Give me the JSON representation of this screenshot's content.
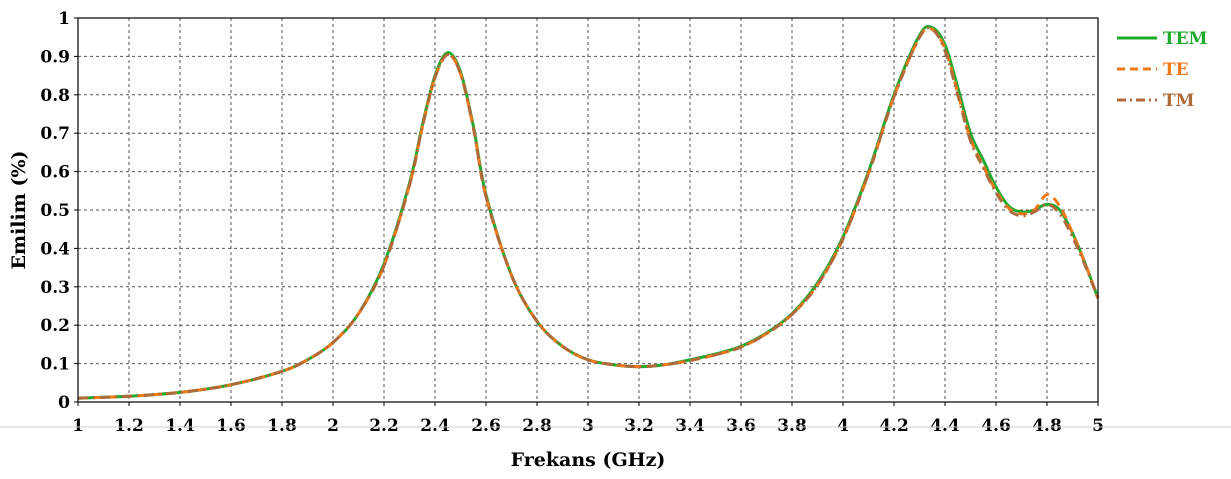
{
  "chart_data": {
    "type": "line",
    "title": "",
    "xlabel": "Frekans (GHz)",
    "ylabel": "Emilim (%)",
    "xlim": [
      1,
      5
    ],
    "ylim": [
      0,
      1
    ],
    "x_ticks": [
      "1",
      "1.2",
      "1.4",
      "1.6",
      "1.8",
      "2",
      "2.2",
      "2.4",
      "2.6",
      "2.8",
      "3",
      "3.2",
      "3.4",
      "3.6",
      "3.8",
      "4",
      "4.2",
      "4.4",
      "4.6",
      "4.8",
      "5"
    ],
    "y_ticks": [
      "0",
      "0.1",
      "0.2",
      "0.3",
      "0.4",
      "0.5",
      "0.6",
      "0.7",
      "0.8",
      "0.9",
      "1"
    ],
    "grid": true,
    "legend_position": "right-top, outside plot",
    "series": [
      {
        "name": "TEM",
        "color": "#1faa2e",
        "style": "solid",
        "x": [
          1.0,
          1.2,
          1.4,
          1.6,
          1.8,
          1.9,
          2.0,
          2.1,
          2.2,
          2.3,
          2.35,
          2.4,
          2.45,
          2.5,
          2.55,
          2.6,
          2.7,
          2.8,
          2.9,
          3.0,
          3.1,
          3.2,
          3.3,
          3.4,
          3.5,
          3.6,
          3.7,
          3.8,
          3.9,
          4.0,
          4.1,
          4.2,
          4.3,
          4.35,
          4.4,
          4.45,
          4.5,
          4.55,
          4.6,
          4.65,
          4.7,
          4.75,
          4.8,
          4.85,
          4.9,
          4.95,
          5.0
        ],
        "y": [
          0.01,
          0.015,
          0.025,
          0.045,
          0.08,
          0.11,
          0.155,
          0.23,
          0.36,
          0.57,
          0.72,
          0.85,
          0.91,
          0.86,
          0.72,
          0.54,
          0.33,
          0.21,
          0.145,
          0.11,
          0.097,
          0.092,
          0.097,
          0.11,
          0.125,
          0.145,
          0.18,
          0.23,
          0.31,
          0.43,
          0.6,
          0.8,
          0.955,
          0.975,
          0.93,
          0.82,
          0.7,
          0.63,
          0.56,
          0.51,
          0.495,
          0.5,
          0.515,
          0.5,
          0.44,
          0.36,
          0.27
        ]
      },
      {
        "name": "TE",
        "color": "#f07a1a",
        "style": "dashed",
        "x": [
          1.0,
          1.2,
          1.4,
          1.6,
          1.8,
          1.9,
          2.0,
          2.1,
          2.2,
          2.3,
          2.35,
          2.4,
          2.45,
          2.5,
          2.55,
          2.6,
          2.7,
          2.8,
          2.9,
          3.0,
          3.1,
          3.2,
          3.3,
          3.4,
          3.5,
          3.6,
          3.7,
          3.8,
          3.9,
          4.0,
          4.1,
          4.2,
          4.3,
          4.35,
          4.4,
          4.45,
          4.5,
          4.55,
          4.6,
          4.65,
          4.7,
          4.75,
          4.8,
          4.85,
          4.9,
          4.95,
          5.0
        ],
        "y": [
          0.01,
          0.015,
          0.025,
          0.045,
          0.08,
          0.11,
          0.155,
          0.23,
          0.355,
          0.565,
          0.715,
          0.845,
          0.905,
          0.855,
          0.715,
          0.535,
          0.33,
          0.21,
          0.145,
          0.11,
          0.097,
          0.092,
          0.097,
          0.108,
          0.123,
          0.143,
          0.178,
          0.228,
          0.305,
          0.425,
          0.595,
          0.795,
          0.95,
          0.97,
          0.92,
          0.805,
          0.685,
          0.615,
          0.55,
          0.505,
          0.49,
          0.5,
          0.54,
          0.51,
          0.44,
          0.36,
          0.27
        ]
      },
      {
        "name": "TM",
        "color": "#b06a3a",
        "style": "dash-dot",
        "x": [
          1.0,
          1.2,
          1.4,
          1.6,
          1.8,
          1.9,
          2.0,
          2.1,
          2.2,
          2.3,
          2.35,
          2.4,
          2.45,
          2.5,
          2.55,
          2.6,
          2.7,
          2.8,
          2.9,
          3.0,
          3.1,
          3.2,
          3.3,
          3.4,
          3.5,
          3.6,
          3.7,
          3.8,
          3.9,
          4.0,
          4.1,
          4.2,
          4.3,
          4.35,
          4.4,
          4.45,
          4.5,
          4.55,
          4.6,
          4.65,
          4.7,
          4.75,
          4.8,
          4.85,
          4.9,
          4.95,
          5.0
        ],
        "y": [
          0.01,
          0.015,
          0.025,
          0.045,
          0.08,
          0.11,
          0.155,
          0.23,
          0.355,
          0.565,
          0.715,
          0.845,
          0.905,
          0.855,
          0.715,
          0.535,
          0.33,
          0.21,
          0.145,
          0.11,
          0.097,
          0.092,
          0.097,
          0.108,
          0.123,
          0.143,
          0.178,
          0.228,
          0.305,
          0.425,
          0.595,
          0.795,
          0.95,
          0.97,
          0.915,
          0.8,
          0.68,
          0.61,
          0.545,
          0.5,
          0.485,
          0.495,
          0.515,
          0.49,
          0.43,
          0.355,
          0.27
        ]
      }
    ]
  }
}
